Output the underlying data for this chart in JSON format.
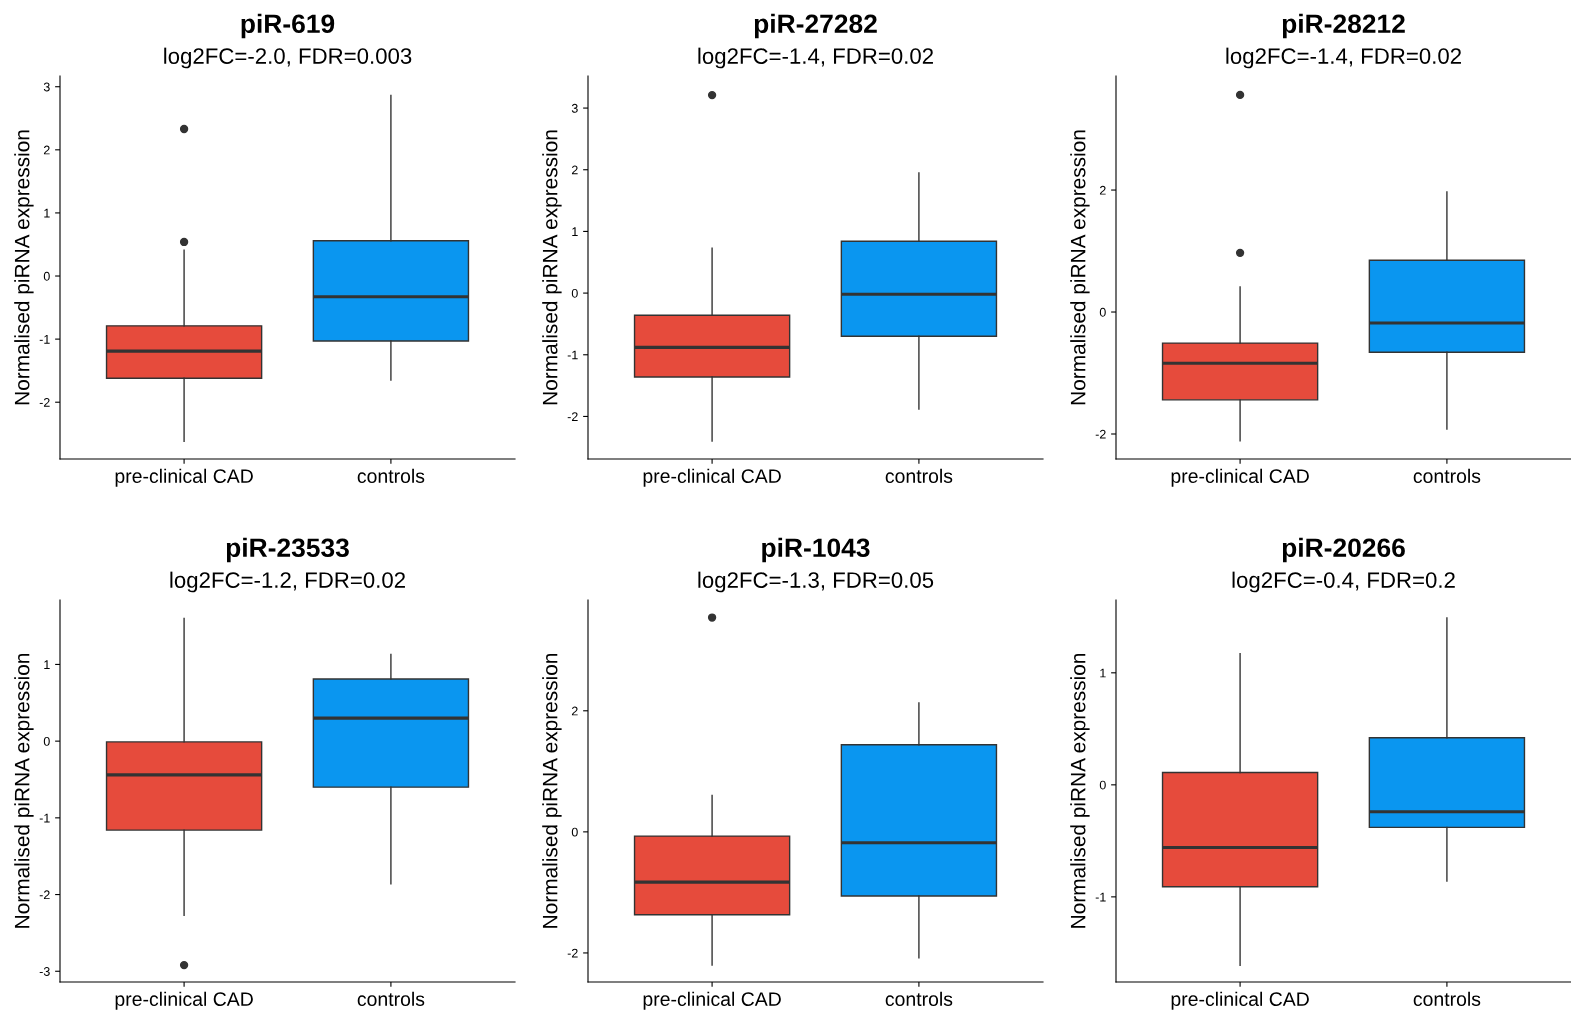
{
  "chart_data": [
    {
      "type": "box",
      "title": "piR-619",
      "subtitle": "log2FC=-2.0, FDR=0.003",
      "ylabel": "Normalised piRNA expression",
      "categories": [
        "pre-clinical CAD",
        "controls"
      ],
      "colors": [
        "#e64b3c",
        "#0a96f0"
      ],
      "ylim": [
        -2.9,
        3.17
      ],
      "yticks": [
        {
          "value": -2,
          "label": "-2"
        },
        {
          "value": -1,
          "label": "-1"
        },
        0,
        1,
        2,
        3
      ],
      "boxes": [
        {
          "low": -2.62,
          "q1": -1.62,
          "median": -1.19,
          "q3": -0.79,
          "high": 0.41,
          "outliers": [
            2.33,
            0.54
          ]
        },
        {
          "low": -1.65,
          "q1": -1.03,
          "median": -0.33,
          "q3": 0.56,
          "high": 2.86
        }
      ]
    },
    {
      "type": "box",
      "title": "piR-27282",
      "subtitle": "log2FC=-1.4, FDR=0.02",
      "ylabel": "Normalised piRNA expression",
      "categories": [
        "pre-clinical CAD",
        "controls"
      ],
      "colors": [
        "#e64b3c",
        "#0a96f0"
      ],
      "ylim": [
        -2.69,
        3.52
      ],
      "yticks": [
        {
          "value": -2,
          "label": "-2"
        },
        {
          "value": -1,
          "label": "-1"
        },
        0,
        1,
        2,
        3
      ],
      "boxes": [
        {
          "low": -2.4,
          "q1": -1.36,
          "median": -0.88,
          "q3": -0.36,
          "high": 0.73,
          "outliers": [
            3.21
          ]
        },
        {
          "low": -1.88,
          "q1": -0.7,
          "median": -0.02,
          "q3": 0.84,
          "high": 1.95
        }
      ]
    },
    {
      "type": "box",
      "title": "piR-28212",
      "subtitle": "log2FC=-1.4, FDR=0.02",
      "ylabel": "Normalised piRNA expression",
      "categories": [
        "pre-clinical CAD",
        "controls"
      ],
      "colors": [
        "#e64b3c",
        "#0a96f0"
      ],
      "ylim": [
        -2.41,
        3.87
      ],
      "yticks": [
        {
          "value": -2,
          "label": "-2"
        },
        0,
        2
      ],
      "boxes": [
        {
          "low": -2.11,
          "q1": -1.44,
          "median": -0.84,
          "q3": -0.51,
          "high": 0.41,
          "outliers": [
            3.56,
            0.97
          ]
        },
        {
          "low": -1.92,
          "q1": -0.66,
          "median": -0.18,
          "q3": 0.85,
          "high": 1.97
        }
      ]
    },
    {
      "type": "box",
      "title": "piR-23533",
      "subtitle": "log2FC=-1.2, FDR=0.02",
      "ylabel": "Normalised piRNA expression",
      "categories": [
        "pre-clinical CAD",
        "controls"
      ],
      "colors": [
        "#e64b3c",
        "#0a96f0"
      ],
      "ylim": [
        -3.14,
        1.84
      ],
      "yticks": [
        {
          "value": -3,
          "label": "-3"
        },
        {
          "value": -2,
          "label": "-2"
        },
        {
          "value": -1,
          "label": "-1"
        },
        0,
        1
      ],
      "boxes": [
        {
          "low": -2.27,
          "q1": -1.16,
          "median": -0.44,
          "q3": -0.01,
          "high": 1.6,
          "outliers": [
            -2.92
          ]
        },
        {
          "low": -1.86,
          "q1": -0.6,
          "median": 0.3,
          "q3": 0.81,
          "high": 1.13
        }
      ]
    },
    {
      "type": "box",
      "title": "piR-1043",
      "subtitle": "log2FC=-1.3, FDR=0.05",
      "ylabel": "Normalised piRNA expression",
      "categories": [
        "pre-clinical CAD",
        "controls"
      ],
      "colors": [
        "#e64b3c",
        "#0a96f0"
      ],
      "ylim": [
        -2.48,
        3.83
      ],
      "yticks": [
        {
          "value": -2,
          "label": "-2"
        },
        0,
        2
      ],
      "boxes": [
        {
          "low": -2.2,
          "q1": -1.37,
          "median": -0.83,
          "q3": -0.07,
          "high": 0.6,
          "outliers": [
            3.54
          ]
        },
        {
          "low": -2.08,
          "q1": -1.06,
          "median": -0.18,
          "q3": 1.44,
          "high": 2.13
        }
      ]
    },
    {
      "type": "box",
      "title": "piR-20266",
      "subtitle": "log2FC=-0.4, FDR=0.2",
      "ylabel": "Normalised piRNA expression",
      "categories": [
        "pre-clinical CAD",
        "controls"
      ],
      "colors": [
        "#e64b3c",
        "#0a96f0"
      ],
      "ylim": [
        -1.76,
        1.65
      ],
      "yticks": [
        {
          "value": -1,
          "label": "-1"
        },
        0,
        1
      ],
      "boxes": [
        {
          "low": -1.61,
          "q1": -0.91,
          "median": -0.56,
          "q3": 0.11,
          "high": 1.17
        },
        {
          "low": -0.86,
          "q1": -0.38,
          "median": -0.24,
          "q3": 0.42,
          "high": 1.49
        }
      ]
    }
  ]
}
